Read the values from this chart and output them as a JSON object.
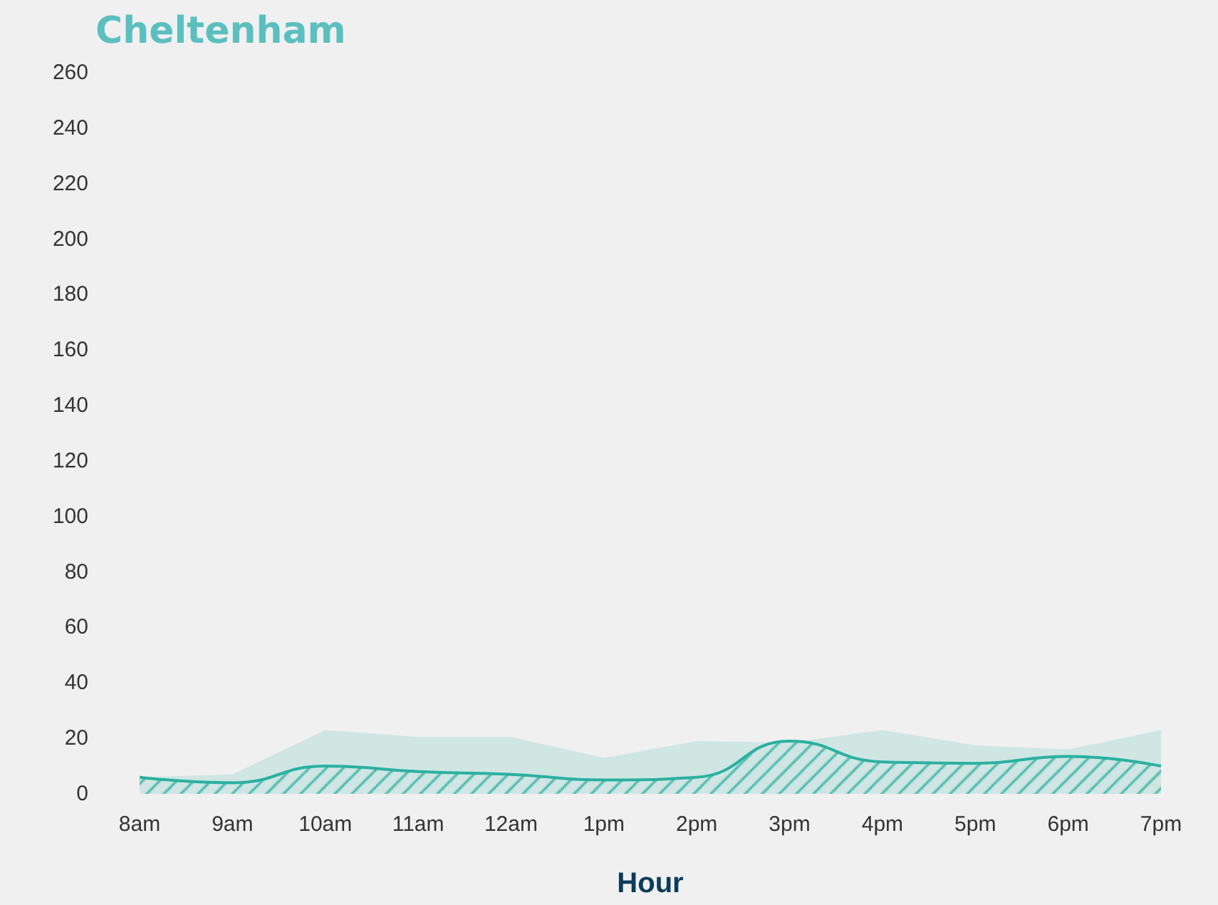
{
  "chart_data": {
    "type": "area",
    "title": "Cheltenham",
    "xlabel": "Hour",
    "categories": [
      "8am",
      "9am",
      "10am",
      "11am",
      "12am",
      "1pm",
      "2pm",
      "3pm",
      "4pm",
      "5pm",
      "6pm",
      "7pm"
    ],
    "series": [
      {
        "color": "#cfe6e3",
        "values": [
          6,
          7,
          23,
          20.5,
          20.5,
          13,
          19,
          18.5,
          23,
          17.5,
          16,
          23
        ]
      },
      {
        "color": "#2ab0a0",
        "values": [
          6,
          4,
          10,
          8,
          7,
          5,
          6,
          19,
          11.5,
          11,
          13.5,
          10
        ]
      }
    ],
    "ylim": [
      0,
      260
    ],
    "yticks": [
      0,
      20,
      40,
      60,
      80,
      100,
      120,
      140,
      160,
      180,
      200,
      220,
      240,
      260
    ]
  }
}
